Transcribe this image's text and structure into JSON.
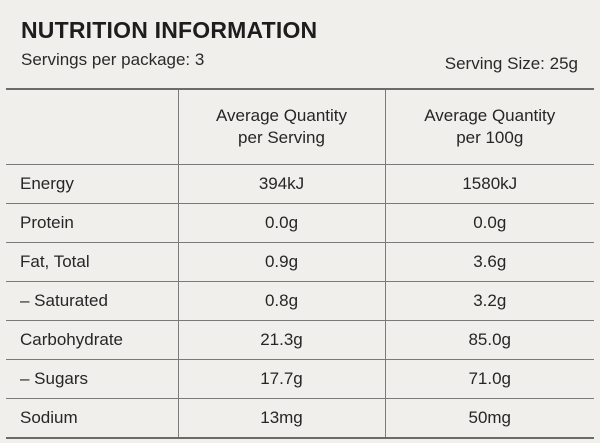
{
  "panel": {
    "title": "NUTRITION INFORMATION",
    "servings_per_package": "Servings per package: 3",
    "serving_size": "Serving Size: 25g"
  },
  "table": {
    "headers": [
      "",
      {
        "line1": "Average Quantity",
        "line2": "per Serving"
      },
      {
        "line1": "Average Quantity",
        "line2": "per 100g"
      }
    ],
    "rows": [
      {
        "nutrient": "Energy",
        "per_serving": "394kJ",
        "per_100g": "1580kJ"
      },
      {
        "nutrient": "Protein",
        "per_serving": "0.0g",
        "per_100g": "0.0g"
      },
      {
        "nutrient": "Fat, Total",
        "per_serving": "0.9g",
        "per_100g": "3.6g"
      },
      {
        "nutrient": "– Saturated",
        "per_serving": "0.8g",
        "per_100g": "3.2g"
      },
      {
        "nutrient": "Carbohydrate",
        "per_serving": "21.3g",
        "per_100g": "85.0g"
      },
      {
        "nutrient": "– Sugars",
        "per_serving": "17.7g",
        "per_100g": "71.0g"
      },
      {
        "nutrient": "Sodium",
        "per_serving": "13mg",
        "per_100g": "50mg"
      }
    ]
  }
}
